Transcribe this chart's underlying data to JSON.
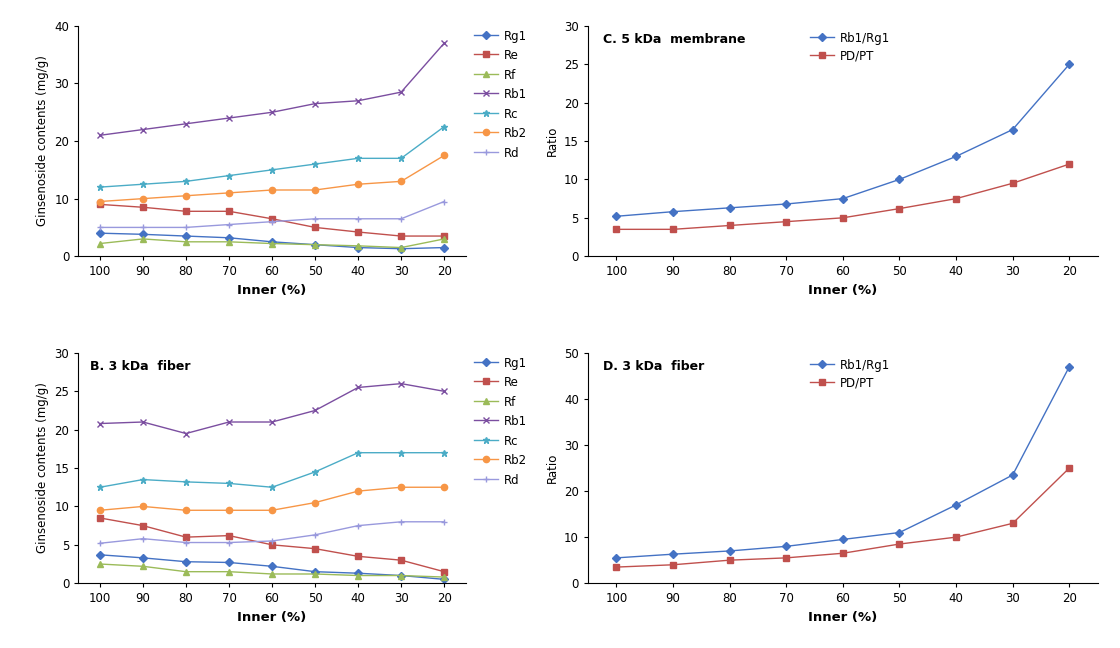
{
  "x_ticks": [
    100,
    90,
    80,
    70,
    60,
    50,
    40,
    30,
    20
  ],
  "panel_A": {
    "title": "",
    "ylabel": "Ginsenoside contents (mg/g)",
    "xlabel": "Inner (%)",
    "ylim": [
      0,
      40
    ],
    "yticks": [
      0,
      10,
      20,
      30,
      40
    ],
    "series": {
      "Rg1": {
        "color": "#4472C4",
        "marker": "D",
        "values": [
          4.0,
          3.8,
          3.5,
          3.2,
          2.5,
          2.0,
          1.5,
          1.3,
          1.5
        ]
      },
      "Re": {
        "color": "#C0504D",
        "marker": "s",
        "values": [
          9.0,
          8.5,
          7.8,
          7.8,
          6.5,
          5.0,
          4.2,
          3.5,
          3.5
        ]
      },
      "Rf": {
        "color": "#9BBB59",
        "marker": "^",
        "values": [
          2.2,
          3.0,
          2.5,
          2.5,
          2.2,
          2.0,
          1.8,
          1.5,
          3.0
        ]
      },
      "Rb1": {
        "color": "#7B4EA0",
        "marker": "x",
        "values": [
          21.0,
          22.0,
          23.0,
          24.0,
          25.0,
          26.5,
          27.0,
          28.5,
          37.0
        ]
      },
      "Rc": {
        "color": "#4BACC6",
        "marker": "*",
        "values": [
          12.0,
          12.5,
          13.0,
          14.0,
          15.0,
          16.0,
          17.0,
          17.0,
          22.5
        ]
      },
      "Rb2": {
        "color": "#F79646",
        "marker": "o",
        "values": [
          9.5,
          10.0,
          10.5,
          11.0,
          11.5,
          11.5,
          12.5,
          13.0,
          17.5
        ]
      },
      "Rd": {
        "color": "#9999DD",
        "marker": "+",
        "values": [
          5.0,
          5.0,
          5.0,
          5.5,
          6.0,
          6.5,
          6.5,
          6.5,
          9.5
        ]
      }
    }
  },
  "panel_B": {
    "title": "B. 3 kDa  fiber",
    "ylabel": "Ginsenoside contents (mg/g)",
    "xlabel": "Inner (%)",
    "ylim": [
      0,
      30
    ],
    "yticks": [
      0,
      5,
      10,
      15,
      20,
      25,
      30
    ],
    "series": {
      "Rg1": {
        "color": "#4472C4",
        "marker": "D",
        "values": [
          3.7,
          3.3,
          2.8,
          2.7,
          2.2,
          1.5,
          1.3,
          1.0,
          0.5
        ]
      },
      "Re": {
        "color": "#C0504D",
        "marker": "s",
        "values": [
          8.5,
          7.5,
          6.0,
          6.2,
          5.0,
          4.5,
          3.5,
          3.0,
          1.5
        ]
      },
      "Rf": {
        "color": "#9BBB59",
        "marker": "^",
        "values": [
          2.5,
          2.2,
          1.5,
          1.5,
          1.2,
          1.2,
          1.0,
          1.0,
          0.8
        ]
      },
      "Rb1": {
        "color": "#7B4EA0",
        "marker": "x",
        "values": [
          20.8,
          21.0,
          19.5,
          21.0,
          21.0,
          22.5,
          25.5,
          26.0,
          25.0
        ]
      },
      "Rc": {
        "color": "#4BACC6",
        "marker": "*",
        "values": [
          12.5,
          13.5,
          13.2,
          13.0,
          12.5,
          14.5,
          17.0,
          17.0,
          17.0
        ]
      },
      "Rb2": {
        "color": "#F79646",
        "marker": "o",
        "values": [
          9.5,
          10.0,
          9.5,
          9.5,
          9.5,
          10.5,
          12.0,
          12.5,
          12.5
        ]
      },
      "Rd": {
        "color": "#9999DD",
        "marker": "+",
        "values": [
          5.2,
          5.8,
          5.3,
          5.3,
          5.5,
          6.3,
          7.5,
          8.0,
          8.0
        ]
      }
    }
  },
  "panel_C": {
    "title": "C. 5 kDa  membrane",
    "ylabel": "Ratio",
    "xlabel": "Inner (%)",
    "ylim": [
      0,
      30
    ],
    "yticks": [
      0,
      5,
      10,
      15,
      20,
      25,
      30
    ],
    "series": {
      "Rb1/Rg1": {
        "color": "#4472C4",
        "marker": "D",
        "values": [
          5.2,
          5.8,
          6.3,
          6.8,
          7.5,
          10.0,
          13.0,
          16.5,
          25.0
        ]
      },
      "PD/PT": {
        "color": "#C0504D",
        "marker": "s",
        "values": [
          3.5,
          3.5,
          4.0,
          4.5,
          5.0,
          6.2,
          7.5,
          9.5,
          12.0
        ]
      }
    }
  },
  "panel_D": {
    "title": "D. 3 kDa  fiber",
    "ylabel": "Ratio",
    "xlabel": "Inner (%)",
    "ylim": [
      0,
      50
    ],
    "yticks": [
      0,
      10,
      20,
      30,
      40,
      50
    ],
    "series": {
      "Rb1/Rg1": {
        "color": "#4472C4",
        "marker": "D",
        "values": [
          5.5,
          6.3,
          7.0,
          8.0,
          9.5,
          11.0,
          17.0,
          23.5,
          47.0
        ]
      },
      "PD/PT": {
        "color": "#C0504D",
        "marker": "s",
        "values": [
          3.5,
          4.0,
          5.0,
          5.5,
          6.5,
          8.5,
          10.0,
          13.0,
          25.0
        ]
      }
    }
  }
}
